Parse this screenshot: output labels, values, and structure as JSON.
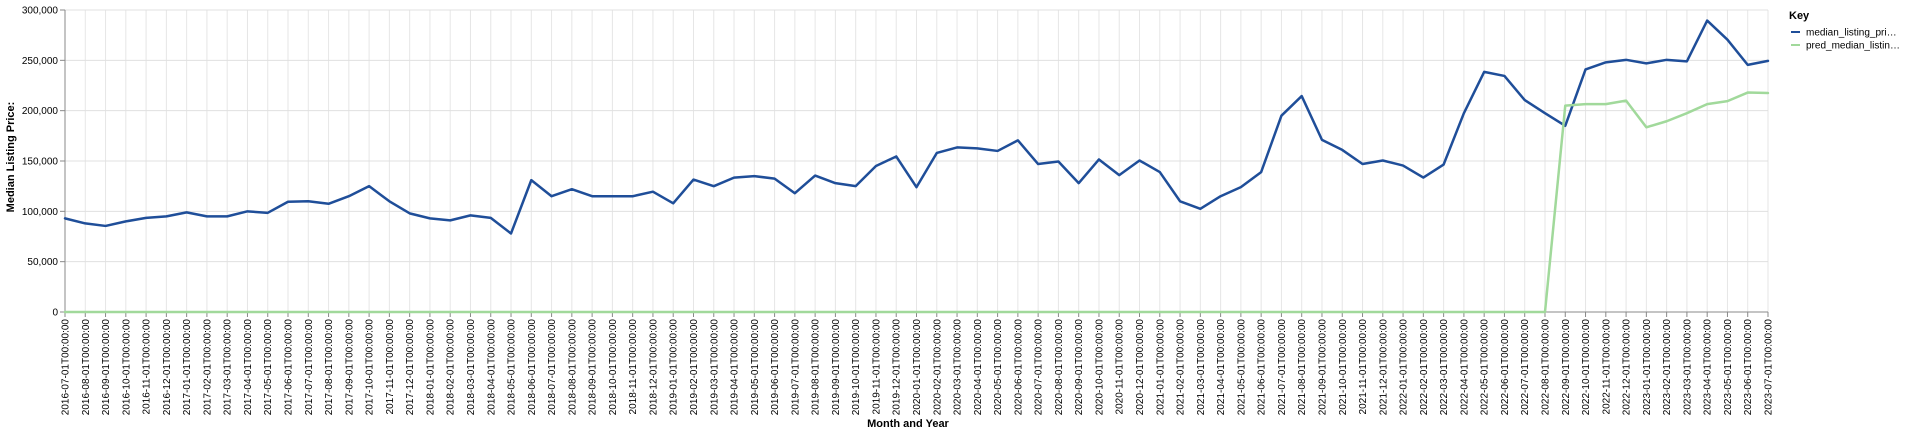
{
  "chart_data": {
    "type": "line",
    "xlabel": "Month and Year",
    "ylabel": "Median Listing Price:",
    "ylim": [
      0,
      300000
    ],
    "yticks": [
      "0",
      "50,000",
      "100,000",
      "150,000",
      "200,000",
      "250,000",
      "300,000"
    ],
    "yticks_values": [
      0,
      50000,
      100000,
      150000,
      200000,
      250000,
      300000
    ],
    "grid": true,
    "legend": {
      "title": "Key",
      "position": "top-right"
    },
    "x": [
      "2016-07-01T00:00:00",
      "2016-08-01T00:00:00",
      "2016-09-01T00:00:00",
      "2016-10-01T00:00:00",
      "2016-11-01T00:00:00",
      "2016-12-01T00:00:00",
      "2017-01-01T00:00:00",
      "2017-02-01T00:00:00",
      "2017-03-01T00:00:00",
      "2017-04-01T00:00:00",
      "2017-05-01T00:00:00",
      "2017-06-01T00:00:00",
      "2017-07-01T00:00:00",
      "2017-08-01T00:00:00",
      "2017-09-01T00:00:00",
      "2017-10-01T00:00:00",
      "2017-11-01T00:00:00",
      "2017-12-01T00:00:00",
      "2018-01-01T00:00:00",
      "2018-02-01T00:00:00",
      "2018-03-01T00:00:00",
      "2018-04-01T00:00:00",
      "2018-05-01T00:00:00",
      "2018-06-01T00:00:00",
      "2018-07-01T00:00:00",
      "2018-08-01T00:00:00",
      "2018-09-01T00:00:00",
      "2018-10-01T00:00:00",
      "2018-11-01T00:00:00",
      "2018-12-01T00:00:00",
      "2019-01-01T00:00:00",
      "2019-02-01T00:00:00",
      "2019-03-01T00:00:00",
      "2019-04-01T00:00:00",
      "2019-05-01T00:00:00",
      "2019-06-01T00:00:00",
      "2019-07-01T00:00:00",
      "2019-08-01T00:00:00",
      "2019-09-01T00:00:00",
      "2019-10-01T00:00:00",
      "2019-11-01T00:00:00",
      "2019-12-01T00:00:00",
      "2020-01-01T00:00:00",
      "2020-02-01T00:00:00",
      "2020-03-01T00:00:00",
      "2020-04-01T00:00:00",
      "2020-05-01T00:00:00",
      "2020-06-01T00:00:00",
      "2020-07-01T00:00:00",
      "2020-08-01T00:00:00",
      "2020-09-01T00:00:00",
      "2020-10-01T00:00:00",
      "2020-11-01T00:00:00",
      "2020-12-01T00:00:00",
      "2021-01-01T00:00:00",
      "2021-02-01T00:00:00",
      "2021-03-01T00:00:00",
      "2021-04-01T00:00:00",
      "2021-05-01T00:00:00",
      "2021-06-01T00:00:00",
      "2021-07-01T00:00:00",
      "2021-08-01T00:00:00",
      "2021-09-01T00:00:00",
      "2021-10-01T00:00:00",
      "2021-11-01T00:00:00",
      "2021-12-01T00:00:00",
      "2022-01-01T00:00:00",
      "2022-02-01T00:00:00",
      "2022-03-01T00:00:00",
      "2022-04-01T00:00:00",
      "2022-05-01T00:00:00",
      "2022-06-01T00:00:00",
      "2022-07-01T00:00:00",
      "2022-08-01T00:00:00",
      "2022-09-01T00:00:00",
      "2022-10-01T00:00:00",
      "2022-11-01T00:00:00",
      "2022-12-01T00:00:00",
      "2023-01-01T00:00:00",
      "2023-02-01T00:00:00",
      "2023-03-01T00:00:00",
      "2023-04-01T00:00:00",
      "2023-05-01T00:00:00",
      "2023-06-01T00:00:00",
      "2023-07-01T00:00:00"
    ],
    "series": [
      {
        "name": "median_listing_pri…",
        "color": "#1f4e99",
        "values": [
          93000,
          88000,
          85500,
          90000,
          93500,
          95000,
          99000,
          95000,
          95000,
          100000,
          98500,
          109500,
          110000,
          107500,
          115000,
          125000,
          110000,
          98000,
          93000,
          91000,
          96000,
          93500,
          78000,
          131000,
          115000,
          122000,
          115000,
          115000,
          115000,
          119500,
          108000,
          131500,
          125000,
          133500,
          135000,
          132500,
          118000,
          135500,
          128000,
          125000,
          145000,
          154500,
          124000,
          158000,
          163500,
          162500,
          160000,
          170500,
          147000,
          149500,
          128000,
          151500,
          136000,
          150500,
          139000,
          110000,
          102500,
          115000,
          124000,
          139000,
          195000,
          214500,
          171000,
          161000,
          147000,
          150500,
          145500,
          133500,
          146500,
          197500,
          238500,
          234500,
          210500,
          197500,
          185000,
          241000,
          248000,
          250500,
          247000,
          250500,
          249000,
          289500,
          270500,
          245500,
          249500
        ]
      },
      {
        "name": "pred_median_listin…",
        "color": "#a1d99b",
        "values": [
          0,
          0,
          0,
          0,
          0,
          0,
          0,
          0,
          0,
          0,
          0,
          0,
          0,
          0,
          0,
          0,
          0,
          0,
          0,
          0,
          0,
          0,
          0,
          0,
          0,
          0,
          0,
          0,
          0,
          0,
          0,
          0,
          0,
          0,
          0,
          0,
          0,
          0,
          0,
          0,
          0,
          0,
          0,
          0,
          0,
          0,
          0,
          0,
          0,
          0,
          0,
          0,
          0,
          0,
          0,
          0,
          0,
          0,
          0,
          0,
          0,
          0,
          0,
          0,
          0,
          0,
          0,
          0,
          0,
          0,
          0,
          0,
          0,
          0,
          205000,
          206500,
          206500,
          210000,
          183500,
          189500,
          197500,
          206500,
          209500,
          218000,
          217500
        ]
      }
    ]
  }
}
